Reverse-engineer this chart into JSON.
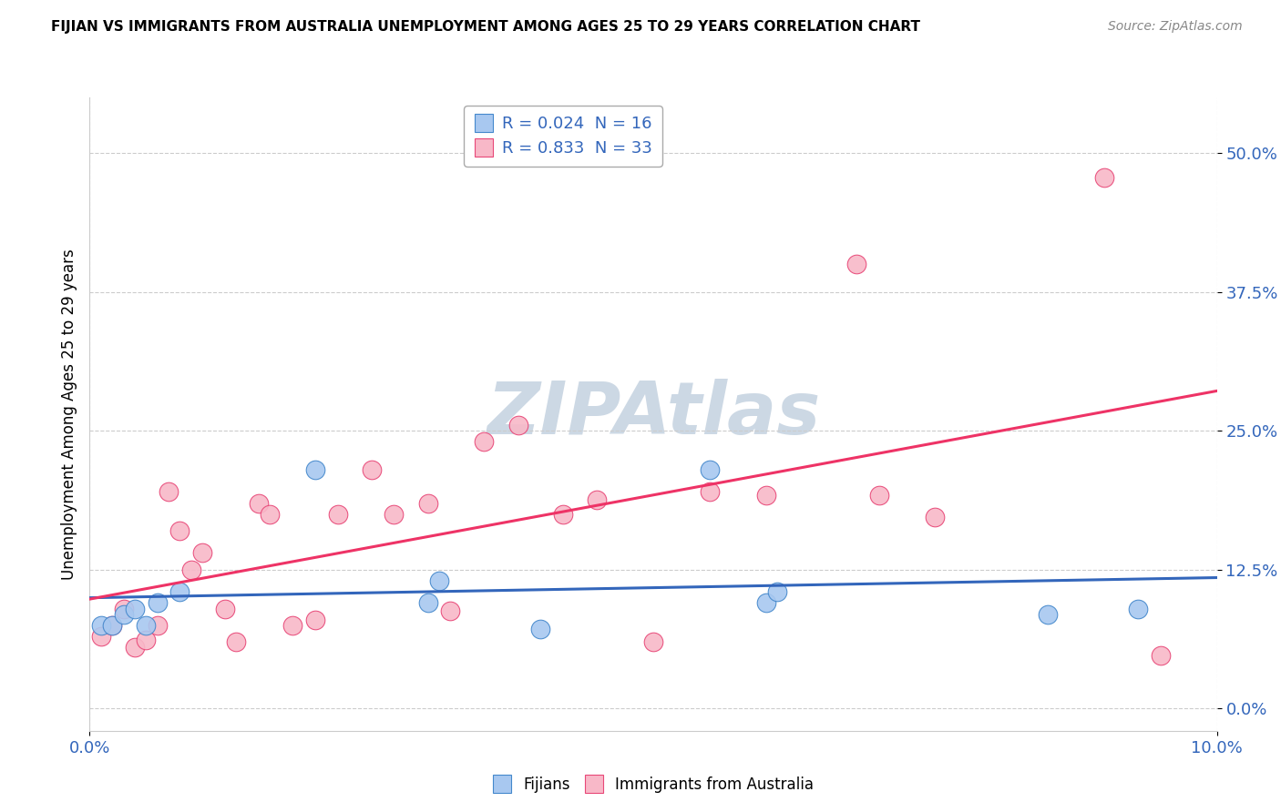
{
  "title": "FIJIAN VS IMMIGRANTS FROM AUSTRALIA UNEMPLOYMENT AMONG AGES 25 TO 29 YEARS CORRELATION CHART",
  "source": "Source: ZipAtlas.com",
  "ylabel": "Unemployment Among Ages 25 to 29 years",
  "ytick_values": [
    0.0,
    0.125,
    0.25,
    0.375,
    0.5
  ],
  "ytick_labels": [
    "0.0%",
    "12.5%",
    "25.0%",
    "37.5%",
    "50.0%"
  ],
  "xlim": [
    0.0,
    0.1
  ],
  "ylim": [
    -0.02,
    0.55
  ],
  "xtick_values": [
    0.0,
    0.1
  ],
  "xtick_labels": [
    "0.0%",
    "10.0%"
  ],
  "legend1_label": "Fijians",
  "legend2_label": "Immigrants from Australia",
  "r1": "0.024",
  "n1": "16",
  "r2": "0.833",
  "n2": "33",
  "fijian_color": "#a8c8f0",
  "immigrant_color": "#f8b8c8",
  "fijian_edge_color": "#4488cc",
  "immigrant_edge_color": "#e84878",
  "fijian_line_color": "#3366bb",
  "immigrant_line_color": "#ee3366",
  "watermark_color": "#ccd8e4",
  "fijians_x": [
    0.001,
    0.002,
    0.003,
    0.004,
    0.005,
    0.006,
    0.008,
    0.02,
    0.03,
    0.031,
    0.04,
    0.055,
    0.06,
    0.061,
    0.085,
    0.093
  ],
  "fijians_y": [
    0.075,
    0.075,
    0.085,
    0.09,
    0.075,
    0.095,
    0.105,
    0.215,
    0.095,
    0.115,
    0.072,
    0.215,
    0.095,
    0.105,
    0.085,
    0.09
  ],
  "immigrants_x": [
    0.001,
    0.002,
    0.003,
    0.004,
    0.005,
    0.006,
    0.007,
    0.008,
    0.009,
    0.01,
    0.012,
    0.013,
    0.015,
    0.016,
    0.018,
    0.02,
    0.022,
    0.025,
    0.027,
    0.03,
    0.032,
    0.035,
    0.038,
    0.042,
    0.045,
    0.05,
    0.055,
    0.06,
    0.068,
    0.07,
    0.075,
    0.09,
    0.095
  ],
  "immigrants_y": [
    0.065,
    0.075,
    0.09,
    0.055,
    0.062,
    0.075,
    0.195,
    0.16,
    0.125,
    0.14,
    0.09,
    0.06,
    0.185,
    0.175,
    0.075,
    0.08,
    0.175,
    0.215,
    0.175,
    0.185,
    0.088,
    0.24,
    0.255,
    0.175,
    0.188,
    0.06,
    0.195,
    0.192,
    0.4,
    0.192,
    0.172,
    0.478,
    0.048
  ]
}
